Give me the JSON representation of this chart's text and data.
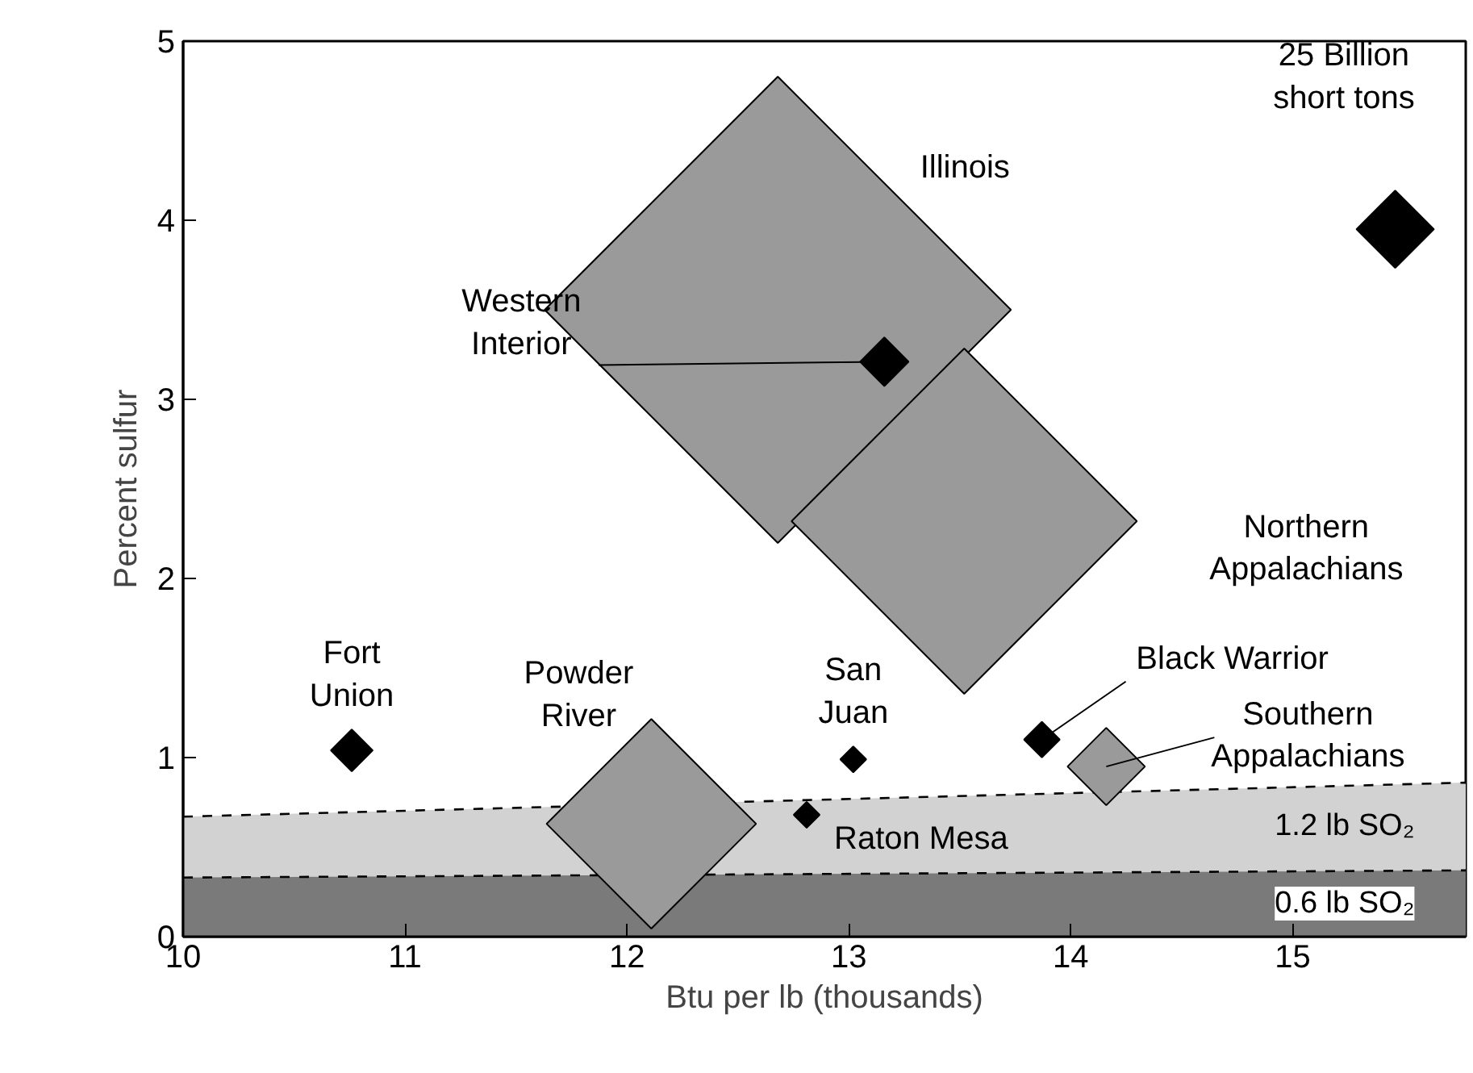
{
  "chart_data": {
    "type": "bubble",
    "xlabel": "Btu per lb (thousands)",
    "ylabel": "Percent sulfur",
    "xlim": [
      10,
      15.78
    ],
    "ylim": [
      0,
      5
    ],
    "xticks": [
      10,
      11,
      12,
      13,
      14,
      15
    ],
    "yticks": [
      0,
      1,
      2,
      3,
      4,
      5
    ],
    "grid": false,
    "marker": "diamond",
    "size_legend": [
      {
        "value": 25,
        "label": "25 Billion\nshort tons"
      }
    ],
    "series": [
      {
        "name": "1.2 lb SO₂",
        "type": "area",
        "x": [
          10,
          15.78
        ],
        "values": [
          0.67,
          0.86
        ],
        "color": "#d2d2d2",
        "line_style": "dashed",
        "marker": "none"
      },
      {
        "name": "0.6 lb SO₂",
        "type": "area",
        "x": [
          10,
          15.78
        ],
        "values": [
          0.33,
          0.37
        ],
        "color": "#7a7a7a",
        "line_style": "dashed",
        "marker": "none"
      },
      {
        "name": "Illinois",
        "x": [
          12.68
        ],
        "values": [
          3.5
        ],
        "sizes": [
          906
        ],
        "color": "#9a9a9a"
      },
      {
        "name": "Northern\nAppalachians",
        "x": [
          13.52
        ],
        "values": [
          2.32
        ],
        "sizes": [
          497
        ],
        "color": "#9a9a9a"
      },
      {
        "name": "Powder\nRiver",
        "x": [
          12.11
        ],
        "values": [
          0.63
        ],
        "sizes": [
          183
        ],
        "color": "#9a9a9a"
      },
      {
        "name": "Southern\nAppalachians",
        "x": [
          14.16
        ],
        "values": [
          0.95
        ],
        "sizes": [
          25
        ],
        "color": "#9a9a9a"
      },
      {
        "name": "Western\nInterior",
        "x": [
          13.16
        ],
        "values": [
          3.21
        ],
        "sizes": [
          9.8
        ],
        "color": "#000000"
      },
      {
        "name": "Black Warrior",
        "x": [
          13.87
        ],
        "values": [
          1.1
        ],
        "sizes": [
          5.3
        ],
        "color": "#000000"
      },
      {
        "name": "Fort\nUnion",
        "x": [
          10.76
        ],
        "values": [
          1.04
        ],
        "sizes": [
          7.3
        ],
        "color": "#000000"
      },
      {
        "name": "San\nJuan",
        "x": [
          13.02
        ],
        "values": [
          0.99
        ],
        "sizes": [
          2.8
        ],
        "color": "#000000"
      },
      {
        "name": "Raton Mesa",
        "x": [
          12.81
        ],
        "values": [
          0.68
        ],
        "sizes": [
          2.8
        ],
        "color": "#000000"
      }
    ]
  }
}
